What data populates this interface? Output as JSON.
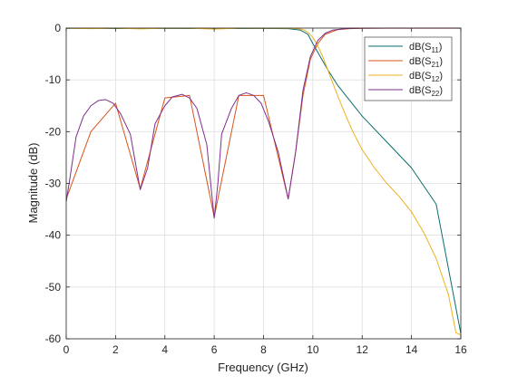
{
  "chart_data": {
    "type": "line",
    "xlabel": "Frequency (GHz)",
    "ylabel": "Magnitude (dB)",
    "xlim": [
      0,
      16
    ],
    "ylim": [
      -60,
      0
    ],
    "xticks": [
      0,
      2,
      4,
      6,
      8,
      10,
      12,
      14,
      16
    ],
    "yticks": [
      0,
      -10,
      -20,
      -30,
      -40,
      -50,
      -60
    ],
    "grid": true,
    "legend_position": "top-right",
    "series": [
      {
        "name": "dB(S11)",
        "legend_base": "dB(S",
        "legend_sub": "11",
        "color": "#0b6e6e",
        "x": [
          0,
          2,
          4,
          6,
          8,
          9,
          9.5,
          9.8,
          10,
          10.3,
          10.6,
          11,
          11.5,
          12,
          13,
          14,
          15,
          16
        ],
        "y": [
          -0.05,
          -0.08,
          -0.06,
          -0.08,
          -0.07,
          -0.1,
          -0.4,
          -1.2,
          -3,
          -5.5,
          -8,
          -11,
          -14,
          -17,
          -22,
          -27,
          -34,
          -59
        ]
      },
      {
        "name": "dB(S21)",
        "legend_base": "dB(S",
        "legend_sub": "21",
        "color": "#d95319",
        "x": [
          0,
          1,
          2,
          3,
          4,
          5,
          6,
          7,
          8,
          9,
          9.3,
          9.6,
          9.9,
          10.2,
          10.5,
          11,
          11.5,
          12,
          13,
          14,
          15,
          16
        ],
        "y": [
          -33,
          -20,
          -14.5,
          -31,
          -13.5,
          -13,
          -36.5,
          -13,
          -13,
          -33,
          -24,
          -13,
          -6,
          -3,
          -1.2,
          -0.3,
          -0.1,
          -0.05,
          -0.03,
          -0.02,
          -0.02,
          -0.02
        ]
      },
      {
        "name": "dB(S12)",
        "legend_base": "dB(S",
        "legend_sub": "12",
        "color": "#edb120",
        "x": [
          0,
          1,
          2,
          3,
          4,
          5,
          6,
          7,
          8,
          9,
          9.2,
          9.4,
          9.6,
          9.8,
          10,
          10.2,
          10.4,
          10.6,
          10.8,
          11,
          11.3,
          11.6,
          12,
          12.5,
          13,
          13.5,
          14,
          14.5,
          15,
          15.5,
          15.8,
          16
        ],
        "y": [
          -0.02,
          -0.1,
          -0.02,
          -0.15,
          -0.02,
          -0.02,
          -0.2,
          -0.02,
          -0.03,
          -0.05,
          -0.06,
          -0.1,
          -0.3,
          -0.8,
          -1.8,
          -3.4,
          -5.5,
          -8,
          -10.5,
          -13,
          -16.5,
          -19.8,
          -23.5,
          -27,
          -30,
          -32.5,
          -35.5,
          -39.5,
          -44.5,
          -51.5,
          -58.8,
          -59.3
        ]
      },
      {
        "name": "dB(S22)",
        "legend_base": "dB(S",
        "legend_sub": "22",
        "color": "#7e2f8e",
        "x": [
          0,
          0.15,
          0.4,
          0.7,
          1,
          1.3,
          1.6,
          1.9,
          2.2,
          2.6,
          3,
          3.3,
          3.6,
          4,
          4.3,
          4.7,
          5,
          5.3,
          5.7,
          6,
          6.15,
          6.3,
          6.7,
          7,
          7.3,
          7.6,
          7.9,
          8.2,
          8.6,
          9,
          9.3,
          9.6,
          9.9,
          10.2,
          10.5,
          10.8,
          11.2,
          11.6,
          12,
          13,
          14,
          15,
          16
        ],
        "y": [
          -33.5,
          -29,
          -21,
          -17,
          -15,
          -14,
          -13.8,
          -14.5,
          -16.5,
          -20.5,
          -31.2,
          -27,
          -18.5,
          -15,
          -13.3,
          -12.8,
          -13.5,
          -15.5,
          -22.5,
          -36.7,
          -30,
          -20.5,
          -15.5,
          -13,
          -12.5,
          -13,
          -14.5,
          -18,
          -24,
          -33,
          -24,
          -12,
          -5.5,
          -2.4,
          -1,
          -0.4,
          -0.15,
          -0.05,
          -0.02,
          -0.01,
          -0.01,
          -0.01,
          -0.01
        ]
      }
    ]
  }
}
